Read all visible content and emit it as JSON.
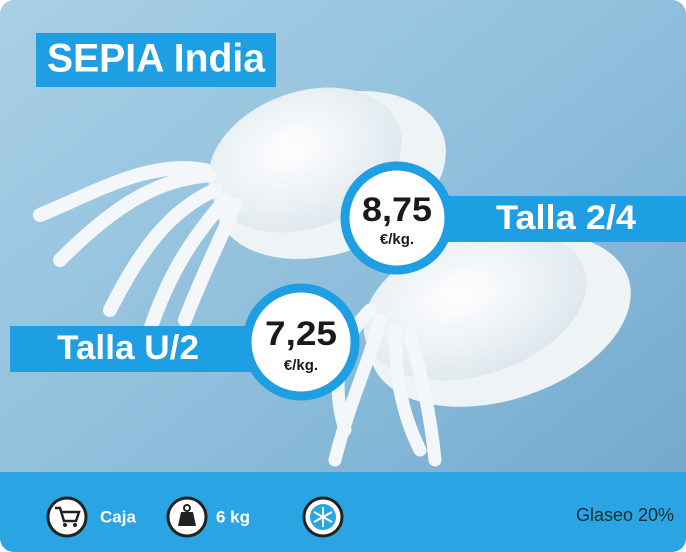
{
  "header": {
    "title": "SEPIA India"
  },
  "offers": [
    {
      "size": "Talla 2/4",
      "price": "8,75",
      "unit": "€/kg."
    },
    {
      "size": "Talla U/2",
      "price": "7,25",
      "unit": "€/kg."
    }
  ],
  "footer": {
    "items": [
      {
        "label": "Caja"
      },
      {
        "label": "6 kg"
      }
    ],
    "glaze": "Glaseo 20%"
  }
}
